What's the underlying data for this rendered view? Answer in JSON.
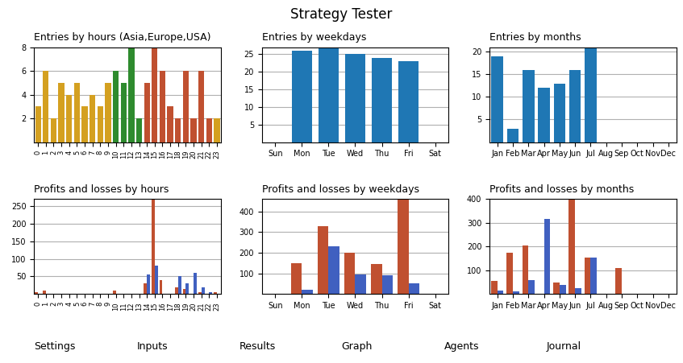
{
  "title": "Strategy Tester",
  "annotations": [
    "Settings",
    "Inputs",
    "Results",
    "Graph",
    "Agents",
    "Journal"
  ],
  "chart_data": [
    {
      "type": "bar",
      "title": "Entries by hours (Asia,Europe,USA)",
      "categories": [
        "0",
        "1",
        "2",
        "3",
        "4",
        "5",
        "6",
        "7",
        "8",
        "9",
        "10",
        "11",
        "12",
        "13",
        "14",
        "15",
        "16",
        "17",
        "18",
        "19",
        "20",
        "21",
        "22",
        "23"
      ],
      "values": [
        3,
        6,
        2,
        5,
        4,
        5,
        3,
        4,
        3,
        5,
        6,
        5,
        8,
        2,
        5,
        8,
        6,
        3,
        2,
        6,
        2,
        6,
        2,
        2
      ],
      "colors": [
        "#d4a020",
        "#d4a020",
        "#d4a020",
        "#d4a020",
        "#d4a020",
        "#d4a020",
        "#d4a020",
        "#d4a020",
        "#d4a020",
        "#d4a020",
        "#2e8b2e",
        "#2e8b2e",
        "#2e8b2e",
        "#2e8b2e",
        "#c05030",
        "#c05030",
        "#c05030",
        "#c05030",
        "#c05030",
        "#c05030",
        "#c05030",
        "#c05030",
        "#c05030",
        "#d4a020"
      ],
      "ylim": [
        0,
        8
      ],
      "yticks": [
        2,
        4,
        6,
        8
      ],
      "grid": true
    },
    {
      "type": "bar",
      "title": "Entries by weekdays",
      "categories": [
        "Sun",
        "Mon",
        "Tue",
        "Wed",
        "Thu",
        "Fri",
        "Sat"
      ],
      "values": [
        0,
        26,
        27,
        25,
        24,
        23,
        0
      ],
      "ylim": [
        0,
        27
      ],
      "yticks": [
        5,
        10,
        15,
        20,
        25
      ],
      "grid": true
    },
    {
      "type": "bar",
      "title": "Entries by months",
      "categories": [
        "Jan",
        "Feb",
        "Mar",
        "Apr",
        "May",
        "Jun",
        "Jul",
        "Aug",
        "Sep",
        "Oct",
        "Nov",
        "Dec"
      ],
      "values": [
        19,
        3,
        16,
        12,
        13,
        16,
        21,
        0,
        0,
        0,
        0,
        0
      ],
      "ylim": [
        0,
        21
      ],
      "yticks": [
        5,
        10,
        15,
        20
      ],
      "grid": true
    },
    {
      "type": "bar",
      "title": "Profits and losses by hours",
      "categories": [
        "0",
        "1",
        "2",
        "3",
        "4",
        "5",
        "6",
        "7",
        "8",
        "9",
        "10",
        "11",
        "12",
        "13",
        "14",
        "15",
        "16",
        "17",
        "18",
        "19",
        "20",
        "21",
        "22",
        "23"
      ],
      "series": [
        {
          "color": "#c05030",
          "values": [
            5,
            10,
            0,
            0,
            0,
            0,
            0,
            0,
            0,
            0,
            10,
            0,
            0,
            0,
            30,
            270,
            40,
            0,
            20,
            15,
            0,
            5,
            0,
            5
          ]
        },
        {
          "color": "#4060c0",
          "values": [
            0,
            0,
            0,
            0,
            0,
            0,
            0,
            0,
            0,
            0,
            0,
            0,
            0,
            0,
            55,
            80,
            0,
            0,
            50,
            30,
            60,
            20,
            5,
            0
          ]
        }
      ],
      "ylim": [
        0,
        270
      ],
      "yticks": [
        50,
        100,
        150,
        200,
        250
      ],
      "grid": true
    },
    {
      "type": "bar",
      "title": "Profits and losses by weekdays",
      "categories": [
        "Sun",
        "Mon",
        "Tue",
        "Wed",
        "Thu",
        "Fri",
        "Sat"
      ],
      "series": [
        {
          "color": "#c05030",
          "values": [
            0,
            150,
            330,
            200,
            145,
            460,
            0
          ]
        },
        {
          "color": "#4060c0",
          "values": [
            0,
            20,
            230,
            95,
            90,
            50,
            0
          ]
        }
      ],
      "ylim": [
        0,
        460
      ],
      "yticks": [
        100,
        200,
        300,
        400
      ],
      "grid": true
    },
    {
      "type": "bar",
      "title": "Profits and losses by months",
      "categories": [
        "Jan",
        "Feb",
        "Mar",
        "Apr",
        "May",
        "Jun",
        "Jul",
        "Aug",
        "Sep",
        "Oct",
        "Nov",
        "Dec"
      ],
      "series": [
        {
          "color": "#c05030",
          "values": [
            55,
            175,
            205,
            0,
            50,
            400,
            155,
            0,
            110,
            0,
            0,
            0
          ]
        },
        {
          "color": "#4060c0",
          "values": [
            15,
            10,
            60,
            315,
            40,
            25,
            155,
            0,
            0,
            0,
            0,
            0
          ]
        }
      ],
      "ylim": [
        0,
        400
      ],
      "yticks": [
        100,
        200,
        300,
        400
      ],
      "grid": true
    }
  ]
}
